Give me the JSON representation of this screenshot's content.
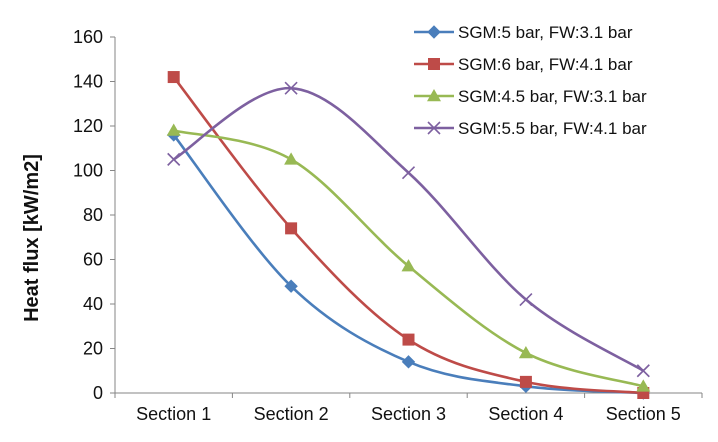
{
  "chart_data": {
    "type": "line",
    "title": "",
    "xlabel": "",
    "ylabel": "Heat flux [kW/m2]",
    "categories": [
      "Section 1",
      "Section 2",
      "Section 3",
      "Section 4",
      "Section 5"
    ],
    "ylim": [
      0,
      160
    ],
    "yticks": [
      0,
      20,
      40,
      60,
      80,
      100,
      120,
      140,
      160
    ],
    "grid": false,
    "legend": "top-right",
    "smooth": true,
    "series": [
      {
        "name": "SGM:5 bar, FW:3.1 bar",
        "values": [
          116,
          48,
          14,
          3,
          0
        ],
        "color": "#4a7ebb",
        "marker": "diamond"
      },
      {
        "name": "SGM:6 bar, FW:4.1 bar",
        "values": [
          142,
          74,
          24,
          5,
          0
        ],
        "color": "#be4b48",
        "marker": "square"
      },
      {
        "name": "SGM:4.5 bar, FW:3.1 bar",
        "values": [
          118,
          105,
          57,
          18,
          3
        ],
        "color": "#98b954",
        "marker": "triangle"
      },
      {
        "name": "SGM:5.5 bar, FW:4.1 bar",
        "values": [
          105,
          137,
          99,
          42,
          10
        ],
        "color": "#7d60a0",
        "marker": "x"
      }
    ]
  }
}
